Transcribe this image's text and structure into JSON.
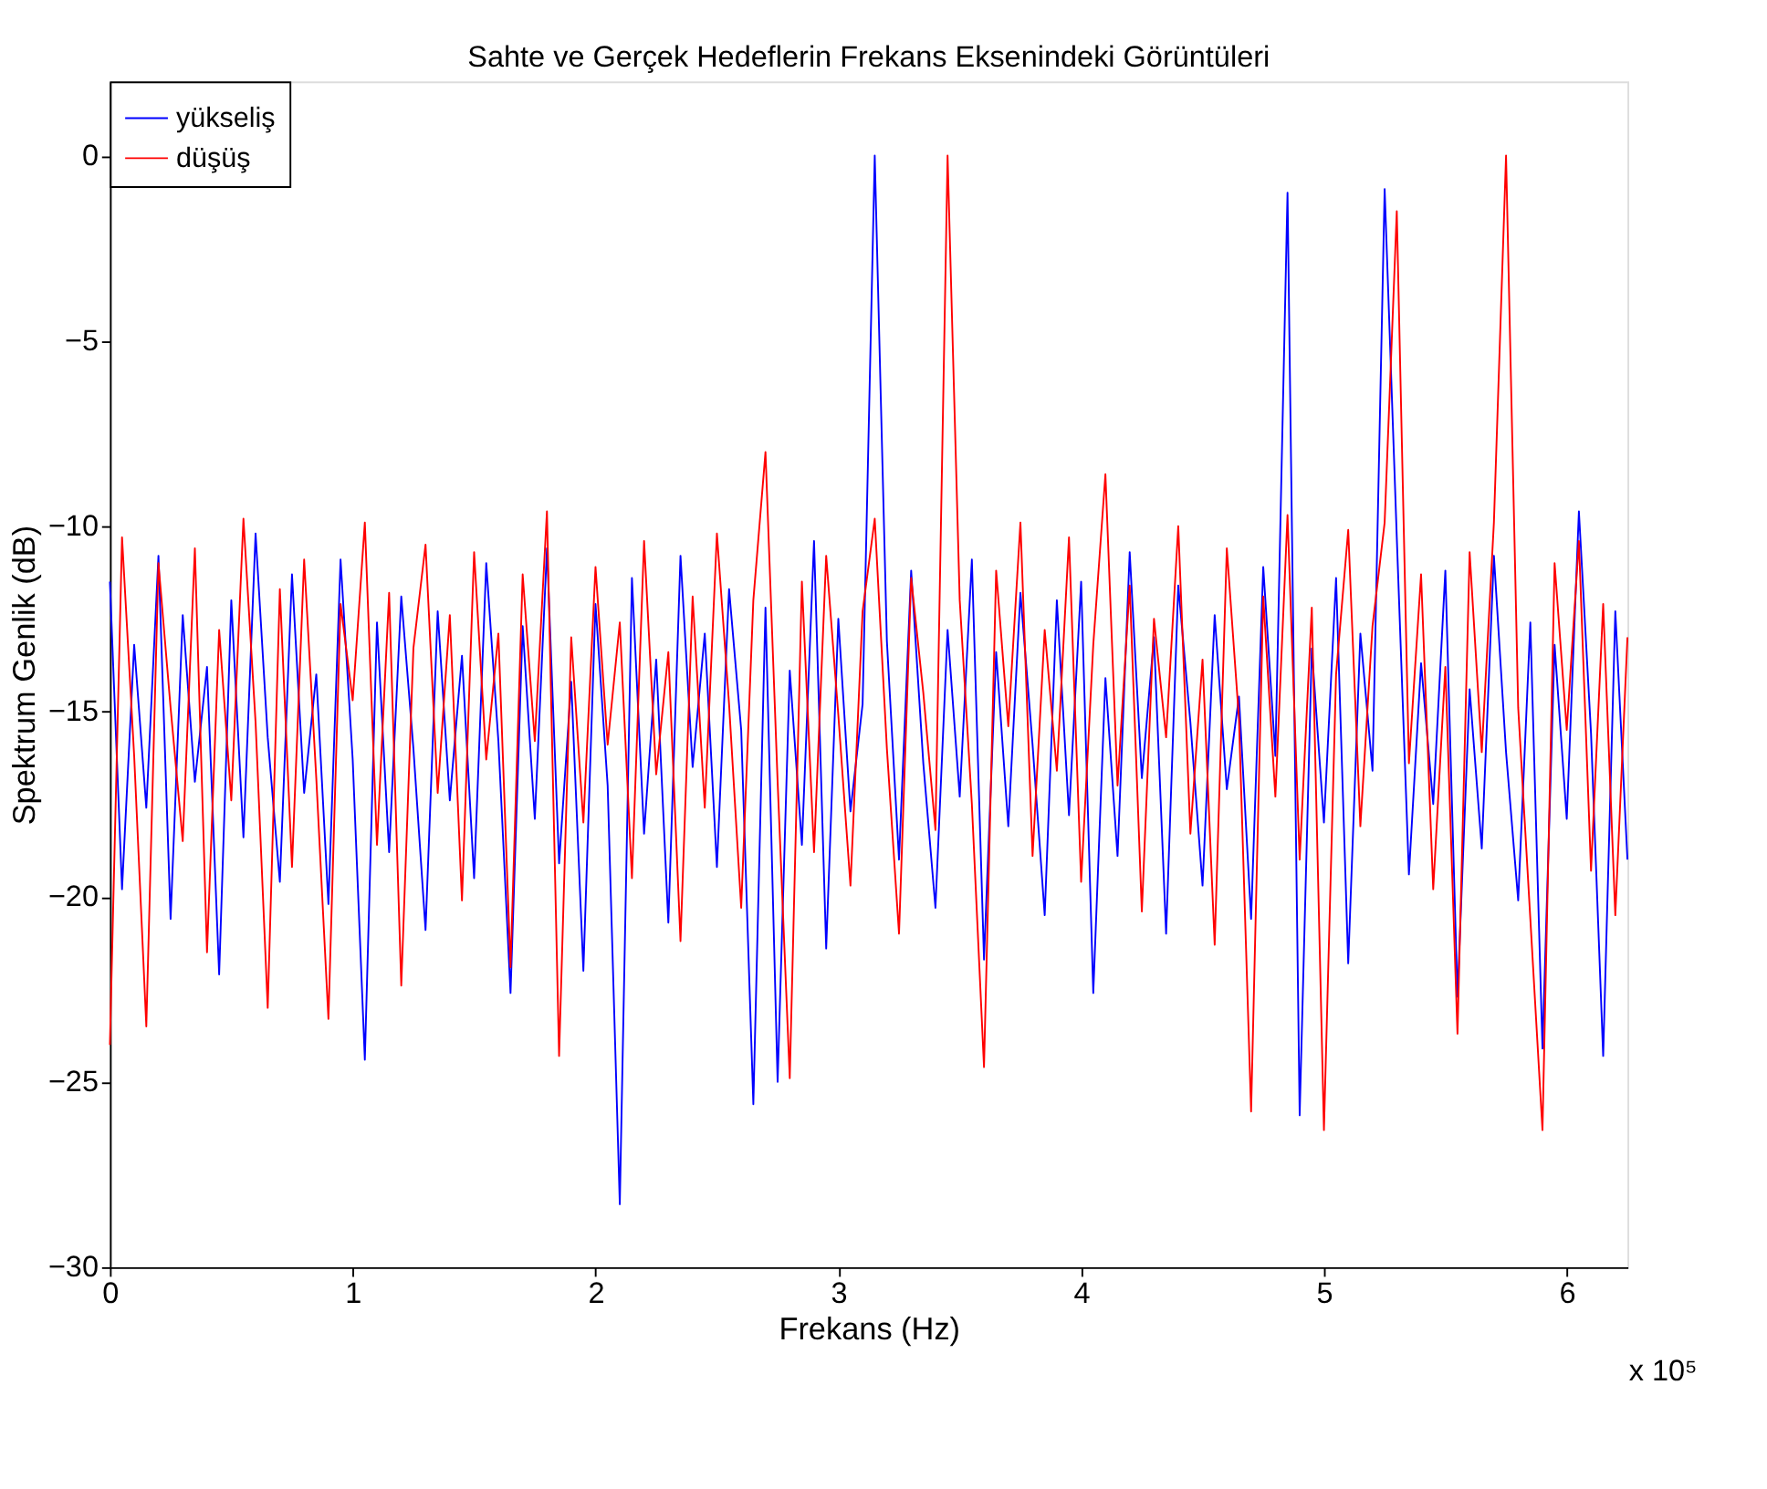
{
  "chart_data": {
    "type": "line",
    "title": "Sahte ve Gerçek Hedeflerin Frekans Eksenindeki Görüntüleri",
    "xlabel": "Frekans (Hz)",
    "ylabel": "Spektrum Genlik (dB)",
    "annotations": [
      "x 10⁵"
    ],
    "x": [
      0,
      0.05,
      0.1,
      0.15,
      0.2,
      0.25,
      0.3,
      0.35,
      0.4,
      0.45,
      0.5,
      0.55,
      0.6,
      0.65,
      0.7,
      0.75,
      0.8,
      0.85,
      0.9,
      0.95,
      1.0,
      1.05,
      1.1,
      1.15,
      1.2,
      1.25,
      1.3,
      1.35,
      1.4,
      1.45,
      1.5,
      1.55,
      1.6,
      1.65,
      1.7,
      1.75,
      1.8,
      1.85,
      1.9,
      1.95,
      2.0,
      2.05,
      2.1,
      2.15,
      2.2,
      2.25,
      2.3,
      2.35,
      2.4,
      2.45,
      2.5,
      2.55,
      2.6,
      2.65,
      2.7,
      2.75,
      2.8,
      2.85,
      2.9,
      2.95,
      3.0,
      3.05,
      3.1,
      3.15,
      3.2,
      3.25,
      3.3,
      3.35,
      3.4,
      3.45,
      3.5,
      3.55,
      3.6,
      3.65,
      3.7,
      3.75,
      3.8,
      3.85,
      3.9,
      3.95,
      4.0,
      4.05,
      4.1,
      4.15,
      4.2,
      4.25,
      4.3,
      4.35,
      4.4,
      4.45,
      4.5,
      4.55,
      4.6,
      4.65,
      4.7,
      4.75,
      4.8,
      4.85,
      4.9,
      4.95,
      5.0,
      5.05,
      5.1,
      5.15,
      5.2,
      5.25,
      5.3,
      5.35,
      5.4,
      5.45,
      5.5,
      5.55,
      5.6,
      5.65,
      5.7,
      5.75,
      5.8,
      5.85,
      5.9,
      5.95,
      6.0,
      6.05,
      6.1,
      6.15,
      6.2,
      6.25
    ],
    "series": [
      {
        "name": "yükseliş",
        "color": "#0000ff",
        "values": [
          -11.5,
          -19.8,
          -13.2,
          -17.6,
          -10.8,
          -20.6,
          -12.4,
          -16.9,
          -13.8,
          -22.1,
          -12.0,
          -18.4,
          -10.2,
          -15.7,
          -19.6,
          -11.3,
          -17.2,
          -14.0,
          -20.2,
          -10.9,
          -16.3,
          -24.4,
          -12.6,
          -18.8,
          -11.9,
          -16.0,
          -20.9,
          -12.3,
          -17.4,
          -13.5,
          -19.5,
          -11.0,
          -15.8,
          -22.6,
          -12.7,
          -17.9,
          -10.6,
          -19.1,
          -14.2,
          -22.0,
          -12.1,
          -17.0,
          -28.3,
          -11.4,
          -18.3,
          -13.6,
          -20.7,
          -10.8,
          -16.5,
          -12.9,
          -19.2,
          -11.7,
          -15.5,
          -25.6,
          -12.2,
          -25.0,
          -13.9,
          -18.6,
          -10.4,
          -21.4,
          -12.5,
          -17.7,
          -14.8,
          0.0,
          -13.1,
          -19.0,
          -11.2,
          -16.4,
          -20.3,
          -12.8,
          -17.3,
          -10.9,
          -21.7,
          -13.4,
          -18.1,
          -11.8,
          -15.9,
          -20.5,
          -12.0,
          -17.8,
          -11.5,
          -22.6,
          -14.1,
          -18.9,
          -10.7,
          -16.8,
          -13.0,
          -21.0,
          -11.6,
          -15.3,
          -19.7,
          -12.4,
          -17.1,
          -14.6,
          -20.6,
          -11.1,
          -16.2,
          -1.0,
          -25.9,
          -13.3,
          -18.0,
          -11.4,
          -21.8,
          -12.9,
          -16.6,
          -0.9,
          -10.3,
          -19.4,
          -13.7,
          -17.5,
          -11.2,
          -22.7,
          -14.4,
          -18.7,
          -10.8,
          -16.1,
          -20.1,
          -12.6,
          -24.1,
          -13.2,
          -17.9,
          -9.6,
          -15.6,
          -24.3,
          -12.3,
          -19.0
        ]
      },
      {
        "name": "düşüş",
        "color": "#ff0000",
        "values": [
          -24.0,
          -10.3,
          -16.2,
          -23.5,
          -11.0,
          -14.9,
          -18.5,
          -10.6,
          -21.5,
          -12.8,
          -17.4,
          -9.8,
          -15.3,
          -23.0,
          -11.7,
          -19.2,
          -10.9,
          -16.8,
          -23.3,
          -12.1,
          -14.7,
          -9.9,
          -18.6,
          -11.8,
          -22.4,
          -13.3,
          -10.5,
          -17.2,
          -12.4,
          -20.1,
          -10.7,
          -16.3,
          -12.9,
          -21.9,
          -11.3,
          -15.8,
          -9.6,
          -24.3,
          -13.0,
          -18.0,
          -11.1,
          -15.9,
          -12.6,
          -19.5,
          -10.4,
          -16.7,
          -13.4,
          -21.2,
          -11.9,
          -17.6,
          -10.2,
          -14.8,
          -20.3,
          -12.0,
          -8.0,
          -16.9,
          -24.9,
          -11.5,
          -18.8,
          -10.8,
          -15.1,
          -19.7,
          -12.3,
          -9.8,
          -16.0,
          -21.0,
          -11.4,
          -14.5,
          -18.2,
          0.0,
          -12.0,
          -17.5,
          -24.6,
          -11.2,
          -15.4,
          -9.9,
          -18.9,
          -12.8,
          -16.6,
          -10.3,
          -19.6,
          -13.2,
          -8.6,
          -17.0,
          -11.6,
          -20.4,
          -12.5,
          -15.7,
          -10.0,
          -18.3,
          -13.6,
          -21.3,
          -10.6,
          -15.2,
          -25.8,
          -11.9,
          -17.3,
          -9.7,
          -19.0,
          -12.2,
          -26.3,
          -14.0,
          -10.1,
          -18.1,
          -12.7,
          -9.9,
          -1.5,
          -16.4,
          -11.3,
          -19.8,
          -13.8,
          -23.7,
          -10.7,
          -16.1,
          -9.9,
          0.0,
          -14.9,
          -20.6,
          -26.3,
          -11.0,
          -15.5,
          -10.4,
          -19.3,
          -12.1,
          -20.5,
          -13.0
        ]
      }
    ],
    "xlim": [
      0,
      6.25
    ],
    "xticks": [
      0,
      1,
      2,
      3,
      4,
      5,
      6
    ],
    "ylim": [
      -30,
      2
    ],
    "yticks": [
      -30,
      -25,
      -20,
      -15,
      -10,
      -5,
      0
    ],
    "grid": false,
    "legend": "top left",
    "line_style": "solid",
    "marker": "none"
  }
}
